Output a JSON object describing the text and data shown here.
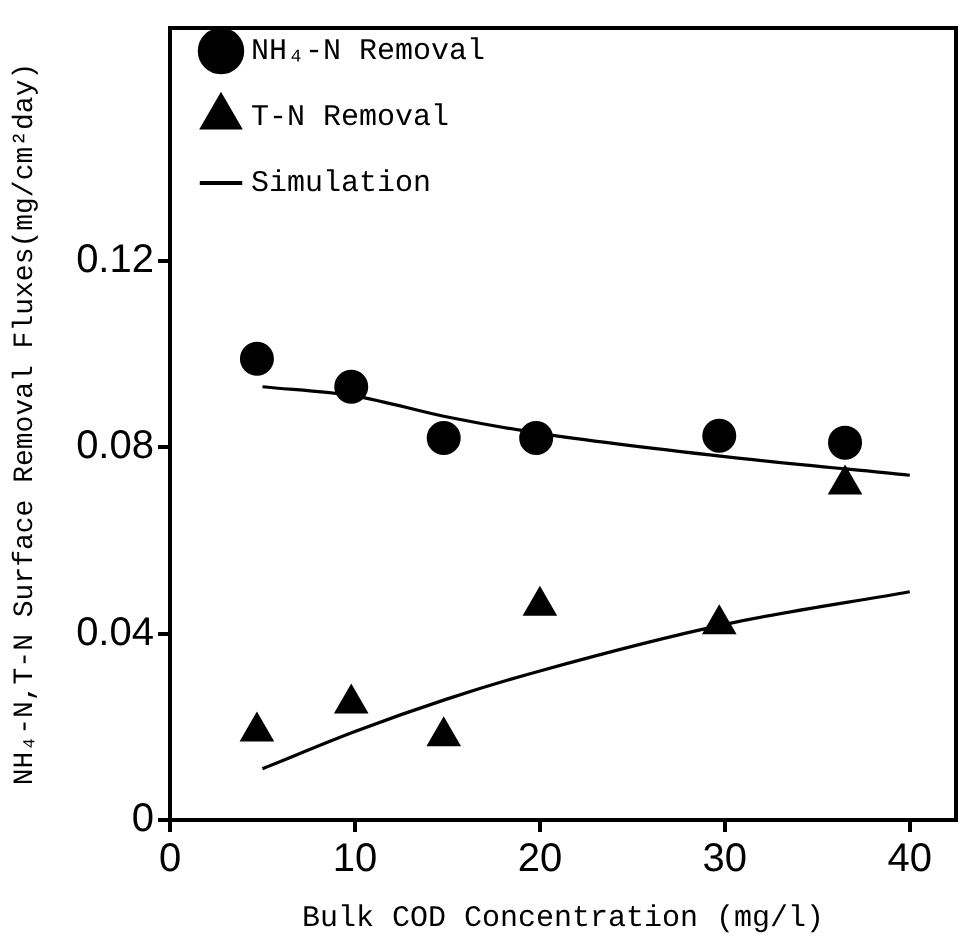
{
  "chart_data": {
    "type": "scatter",
    "xlabel": "Bulk COD Concentration (mg/l)",
    "ylabel": "NH₄-N,T-N Surface Removal Fluxes(mg/cm²day)",
    "xlim": [
      0,
      42.5
    ],
    "xticks": [
      0,
      10,
      20,
      30,
      40
    ],
    "ylim": [
      0,
      0.17
    ],
    "yticks": [
      0,
      0.04,
      0.08,
      0.12
    ],
    "grid": false,
    "legend": "top left",
    "series": [
      {
        "name": "NH₄-N Removal",
        "type": "scatter",
        "marker": "circle",
        "color": "#000000",
        "x": [
          4.7,
          9.8,
          14.8,
          19.8,
          29.7,
          36.5
        ],
        "values": [
          0.099,
          0.093,
          0.082,
          0.082,
          0.0825,
          0.081
        ]
      },
      {
        "name": "T-N Removal",
        "type": "scatter",
        "marker": "triangle",
        "color": "#000000",
        "x": [
          4.7,
          9.8,
          14.8,
          20,
          29.7,
          36.5
        ],
        "values": [
          0.019,
          0.025,
          0.018,
          0.046,
          0.042,
          0.072
        ]
      },
      {
        "name": "Simulation",
        "type": "line",
        "marker": "none",
        "line_style": "solid",
        "color": "#000000",
        "x": [
          5,
          10,
          15,
          20,
          30,
          40
        ],
        "values": [
          0.093,
          0.091,
          0.0865,
          0.083,
          0.078,
          0.074
        ]
      },
      {
        "type": "line",
        "marker": "none",
        "line_style": "solid",
        "color": "#000000",
        "x": [
          5,
          10,
          15,
          20,
          30,
          40
        ],
        "values": [
          0.011,
          0.019,
          0.026,
          0.032,
          0.042,
          0.049
        ]
      }
    ]
  }
}
